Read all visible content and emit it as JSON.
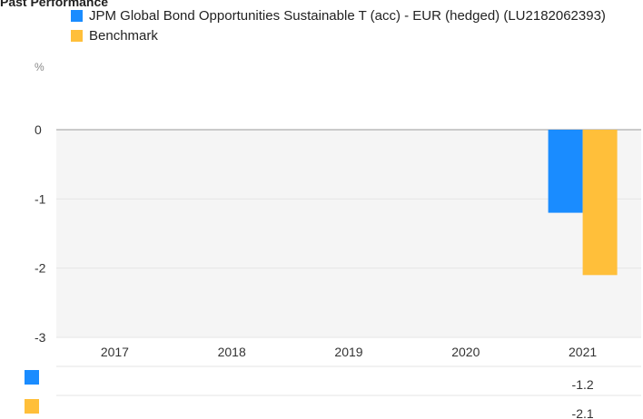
{
  "title": "Past Performance",
  "unit": "%",
  "colors": {
    "fund": "#1a8cff",
    "benchmark": "#ffbf3a",
    "grid": "#e6e6e6",
    "plot_bg": "#f5f5f5"
  },
  "chart_data": {
    "type": "bar",
    "title": "Past Performance",
    "categories": [
      "2017",
      "2018",
      "2019",
      "2020",
      "2021"
    ],
    "ylabel": "%",
    "ylim": [
      -3,
      0
    ],
    "yticks": [
      "0",
      "-1",
      "-2",
      "-3"
    ],
    "grid": true,
    "legend": "top-left",
    "series": [
      {
        "name": "JPM Global Bond Opportunities Sustainable T (acc) - EUR (hedged) (LU2182062393)",
        "values": [
          null,
          null,
          null,
          null,
          -1.2
        ],
        "color": "#1a8cff"
      },
      {
        "name": "Benchmark",
        "values": [
          null,
          null,
          null,
          null,
          -2.1
        ],
        "color": "#ffbf3a"
      }
    ],
    "table": [
      [
        "",
        "",
        "",
        "",
        "-1.2"
      ],
      [
        "",
        "",
        "",
        "",
        "-2.1"
      ]
    ]
  }
}
